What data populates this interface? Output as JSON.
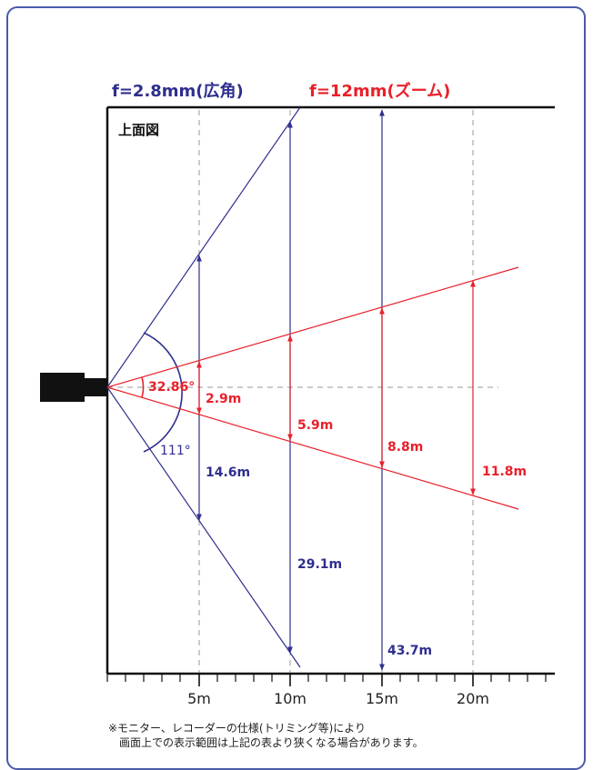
{
  "legend": {
    "wide": "f=2.8mm(広角)",
    "zoom": "f=12mm(ズーム)"
  },
  "view_label": "上面図",
  "angles": {
    "wide": "111°",
    "zoom": "32.86°"
  },
  "wide_widths": [
    "14.6m",
    "29.1m",
    "43.7m"
  ],
  "zoom_widths": [
    "2.9m",
    "5.9m",
    "8.8m",
    "11.8m"
  ],
  "distance_ticks": [
    "5m",
    "10m",
    "15m",
    "20m"
  ],
  "footnote": {
    "line1": "※モニター、レコーダーの仕様(トリミング等)により",
    "line2": "画面上での表示範囲は上記の表より狭くなる場合があります。"
  },
  "colors": {
    "wide": "#2e2e8f",
    "zoom": "#e8202a",
    "frame": "#4a5aa8",
    "grid": "#999999",
    "axis": "#111111"
  }
}
